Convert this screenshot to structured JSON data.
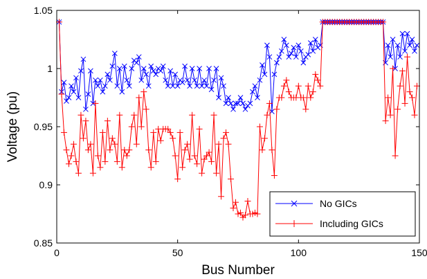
{
  "chart_data": {
    "type": "line",
    "title": "",
    "xlabel": "Bus Number",
    "ylabel": "Voltage (pu)",
    "xlim": [
      0,
      150
    ],
    "ylim": [
      0.85,
      1.05
    ],
    "xticks": [
      0,
      50,
      100,
      150
    ],
    "yticks": [
      0.85,
      0.9,
      0.95,
      1,
      1.05
    ],
    "xtick_labels": [
      "0",
      "50",
      "100",
      "150"
    ],
    "ytick_labels": [
      "0.85",
      "0.9",
      "0.95",
      "1",
      "1.05"
    ],
    "grid": false,
    "legend_position": "bottom-right",
    "series": [
      {
        "name": "No GICs",
        "color": "#0000ff",
        "marker": "x",
        "values": [
          1.04,
          0.98,
          0.988,
          0.972,
          0.975,
          0.985,
          0.98,
          0.992,
          0.975,
          0.998,
          1.008,
          0.965,
          0.978,
          0.998,
          0.97,
          0.99,
          0.985,
          0.99,
          0.98,
          0.985,
          0.995,
          0.99,
          1.002,
          1.013,
          0.985,
          1.0,
          0.98,
          1.002,
          0.99,
          0.985,
          1.0,
          1.007,
          1.005,
          1.01,
          0.99,
          1.0,
          0.995,
          0.985,
          1.002,
          0.998,
          0.995,
          1.0,
          0.998,
          1.002,
          0.99,
          0.985,
          0.998,
          0.985,
          0.995,
          0.985,
          0.99,
          0.988,
          1.002,
          0.99,
          0.985,
          1.0,
          0.99,
          0.985,
          1.0,
          0.985,
          0.99,
          0.985,
          1.0,
          0.982,
          0.99,
          1.0,
          0.975,
          0.992,
          0.985,
          0.97,
          0.975,
          0.97,
          0.965,
          0.97,
          0.97,
          0.975,
          0.97,
          0.965,
          0.968,
          0.97,
          0.98,
          0.985,
          0.975,
          0.99,
          1.003,
          0.995,
          1.02,
          1.01,
          0.963,
          0.995,
          1.005,
          1.01,
          1.015,
          1.025,
          1.02,
          1.01,
          1.013,
          1.018,
          1.01,
          1.02,
          1.015,
          1.005,
          1.01,
          1.012,
          1.022,
          1.015,
          1.025,
          1.018,
          1.02,
          1.04,
          1.04,
          1.04,
          1.04,
          1.04,
          1.04,
          1.04,
          1.04,
          1.04,
          1.04,
          1.04,
          1.04,
          1.04,
          1.04,
          1.04,
          1.04,
          1.04,
          1.04,
          1.04,
          1.04,
          1.04,
          1.04,
          1.04,
          1.04,
          1.04,
          1.04,
          1.005,
          1.02,
          1.01,
          1.025,
          1.0,
          1.02,
          1.01,
          1.03,
          1.015,
          1.03,
          1.02,
          1.025,
          1.015,
          1.02
        ]
      },
      {
        "name": "Including GICs",
        "color": "#ff0000",
        "marker": "+",
        "values": [
          1.04,
          0.978,
          0.945,
          0.93,
          0.918,
          0.925,
          0.935,
          0.92,
          0.91,
          0.96,
          0.94,
          0.955,
          0.93,
          0.935,
          0.91,
          0.97,
          0.925,
          0.915,
          0.945,
          0.92,
          0.955,
          0.93,
          0.94,
          0.935,
          0.92,
          0.96,
          0.915,
          0.93,
          0.925,
          0.93,
          0.95,
          0.96,
          0.935,
          0.975,
          0.95,
          0.98,
          0.965,
          0.93,
          0.915,
          0.945,
          0.92,
          0.948,
          0.938,
          0.948,
          0.948,
          0.948,
          0.945,
          0.94,
          0.925,
          0.905,
          0.945,
          0.915,
          0.93,
          0.935,
          0.922,
          0.96,
          0.925,
          0.918,
          0.948,
          0.91,
          0.922,
          0.925,
          0.928,
          0.92,
          0.96,
          0.91,
          0.935,
          0.89,
          0.94,
          0.945,
          0.935,
          0.905,
          0.88,
          0.885,
          0.875,
          0.876,
          0.872,
          0.874,
          0.886,
          0.875,
          0.875,
          0.876,
          0.875,
          0.95,
          0.93,
          0.94,
          0.96,
          0.97,
          0.93,
          0.908,
          0.965,
          0.975,
          0.975,
          0.985,
          0.99,
          0.98,
          0.975,
          0.975,
          0.975,
          0.985,
          0.975,
          0.975,
          0.965,
          0.985,
          0.975,
          0.98,
          0.995,
          0.99,
          0.985,
          1.04,
          1.04,
          1.04,
          1.04,
          1.04,
          1.04,
          1.04,
          1.04,
          1.04,
          1.04,
          1.04,
          1.04,
          1.04,
          1.04,
          1.04,
          1.04,
          1.04,
          1.04,
          1.04,
          1.04,
          1.04,
          1.04,
          1.04,
          1.04,
          1.04,
          1.04,
          0.955,
          0.975,
          0.96,
          1.0,
          0.925,
          0.965,
          0.985,
          0.998,
          0.97,
          1.01,
          0.98,
          0.975,
          0.96,
          0.985
        ]
      }
    ]
  }
}
